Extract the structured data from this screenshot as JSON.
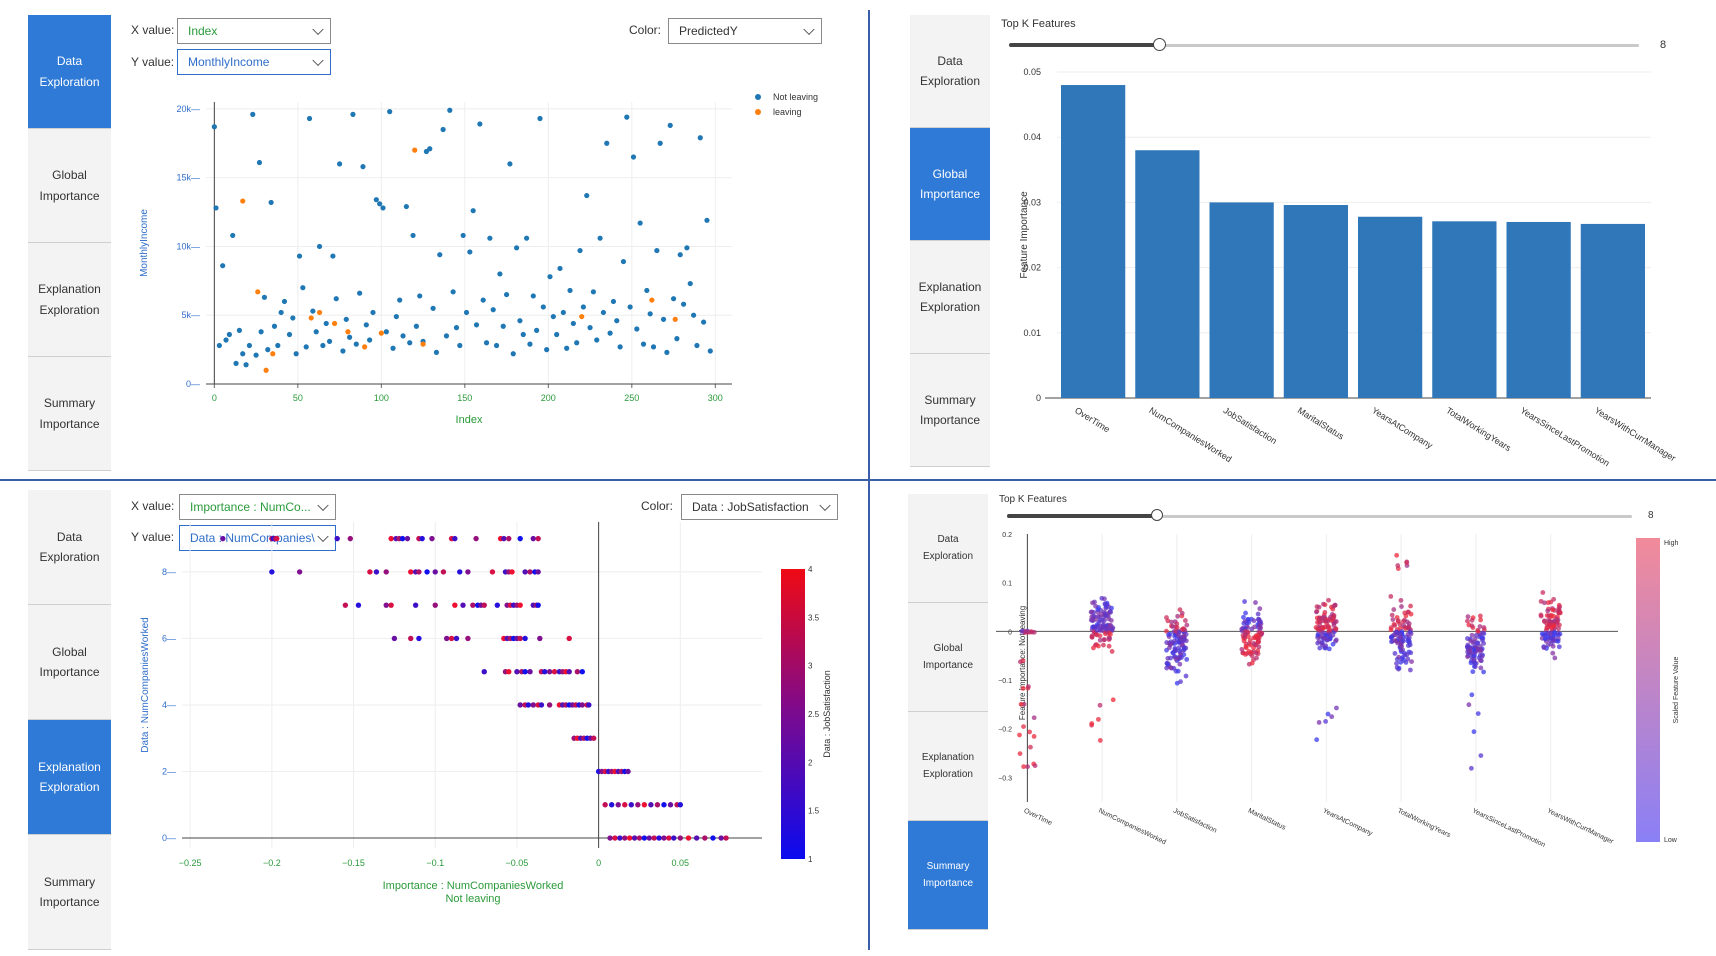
{
  "nav": {
    "data_exploration": "Data\nExploration",
    "global_importance": "Global\nImportance",
    "explanation_exploration": "Explanation\nExploration",
    "summary_importance": "Summary\nImportance"
  },
  "colors": {
    "nav_active": "#2f7ad6",
    "blue_point": "#1f77b4",
    "orange_point": "#ff7f0e",
    "bar": "#2f77b8"
  },
  "data_exploration": {
    "x_label": "X value:",
    "x_value": "Index",
    "y_label": "Y value:",
    "y_value": "MonthlyIncome",
    "color_label": "Color:",
    "color_value": "PredictedY",
    "legend": [
      "Not leaving",
      "leaving"
    ],
    "chart_data": {
      "type": "scatter",
      "xlabel": "Index",
      "ylabel": "MonthlyIncome",
      "xlim": [
        -5,
        310
      ],
      "ylim": [
        0,
        20500
      ],
      "x_ticks": [
        "0",
        "50",
        "100",
        "150",
        "200",
        "250",
        "300"
      ],
      "y_ticks": [
        "0",
        "5k",
        "10k",
        "15k",
        "20k"
      ],
      "series": [
        {
          "name": "Not leaving",
          "points": [
            [
              0,
              18700
            ],
            [
              1,
              12800
            ],
            [
              3,
              2800
            ],
            [
              5,
              8600
            ],
            [
              7,
              3200
            ],
            [
              9,
              3600
            ],
            [
              11,
              10800
            ],
            [
              13,
              1500
            ],
            [
              15,
              3900
            ],
            [
              17,
              2200
            ],
            [
              19,
              1400
            ],
            [
              21,
              2800
            ],
            [
              23,
              19600
            ],
            [
              25,
              2100
            ],
            [
              27,
              16100
            ],
            [
              28,
              3800
            ],
            [
              30,
              6300
            ],
            [
              32,
              2500
            ],
            [
              34,
              13200
            ],
            [
              36,
              4200
            ],
            [
              38,
              2800
            ],
            [
              40,
              5200
            ],
            [
              42,
              6000
            ],
            [
              45,
              3600
            ],
            [
              47,
              4800
            ],
            [
              49,
              2200
            ],
            [
              51,
              9300
            ],
            [
              53,
              7000
            ],
            [
              55,
              2700
            ],
            [
              57,
              19300
            ],
            [
              59,
              5300
            ],
            [
              61,
              3800
            ],
            [
              63,
              10000
            ],
            [
              65,
              2800
            ],
            [
              67,
              4400
            ],
            [
              69,
              3100
            ],
            [
              71,
              9300
            ],
            [
              73,
              6200
            ],
            [
              75,
              16000
            ],
            [
              77,
              2400
            ],
            [
              79,
              4700
            ],
            [
              81,
              3400
            ],
            [
              83,
              19600
            ],
            [
              85,
              2900
            ],
            [
              87,
              6600
            ],
            [
              89,
              15800
            ],
            [
              91,
              4300
            ],
            [
              93,
              3200
            ],
            [
              95,
              5200
            ],
            [
              97,
              13400
            ],
            [
              99,
              13100
            ],
            [
              101,
              12800
            ],
            [
              103,
              3800
            ],
            [
              105,
              19800
            ],
            [
              107,
              2600
            ],
            [
              109,
              4900
            ],
            [
              111,
              6100
            ],
            [
              113,
              3500
            ],
            [
              115,
              12900
            ],
            [
              117,
              3000
            ],
            [
              119,
              10800
            ],
            [
              121,
              4200
            ],
            [
              123,
              6400
            ],
            [
              125,
              3100
            ],
            [
              127,
              16900
            ],
            [
              129,
              17100
            ],
            [
              131,
              5500
            ],
            [
              133,
              2300
            ],
            [
              135,
              9400
            ],
            [
              137,
              18500
            ],
            [
              139,
              3500
            ],
            [
              141,
              19900
            ],
            [
              143,
              6700
            ],
            [
              145,
              4100
            ],
            [
              147,
              2800
            ],
            [
              149,
              10800
            ],
            [
              151,
              5200
            ],
            [
              153,
              9600
            ],
            [
              155,
              12600
            ],
            [
              157,
              4300
            ],
            [
              159,
              18900
            ],
            [
              161,
              6100
            ],
            [
              163,
              3000
            ],
            [
              165,
              10600
            ],
            [
              167,
              5400
            ],
            [
              169,
              2800
            ],
            [
              171,
              8000
            ],
            [
              173,
              4200
            ],
            [
              175,
              6500
            ],
            [
              177,
              16000
            ],
            [
              179,
              2200
            ],
            [
              181,
              9900
            ],
            [
              183,
              4600
            ],
            [
              185,
              3600
            ],
            [
              187,
              10600
            ],
            [
              189,
              2900
            ],
            [
              191,
              6400
            ],
            [
              193,
              3900
            ],
            [
              195,
              19300
            ],
            [
              197,
              5600
            ],
            [
              199,
              2500
            ],
            [
              201,
              7800
            ],
            [
              203,
              4900
            ],
            [
              205,
              3600
            ],
            [
              207,
              8400
            ],
            [
              209,
              5200
            ],
            [
              211,
              2600
            ],
            [
              213,
              6800
            ],
            [
              215,
              4400
            ],
            [
              217,
              3000
            ],
            [
              219,
              9700
            ],
            [
              221,
              5600
            ],
            [
              223,
              13700
            ],
            [
              225,
              4100
            ],
            [
              227,
              6700
            ],
            [
              229,
              3200
            ],
            [
              231,
              10600
            ],
            [
              233,
              5200
            ],
            [
              235,
              17500
            ],
            [
              237,
              3700
            ],
            [
              239,
              6000
            ],
            [
              241,
              4600
            ],
            [
              243,
              2700
            ],
            [
              245,
              8900
            ],
            [
              247,
              19400
            ],
            [
              249,
              5600
            ],
            [
              251,
              16500
            ],
            [
              253,
              4000
            ],
            [
              255,
              11700
            ],
            [
              257,
              2900
            ],
            [
              259,
              6800
            ],
            [
              261,
              5100
            ],
            [
              263,
              2700
            ],
            [
              265,
              9700
            ],
            [
              267,
              17500
            ],
            [
              269,
              4700
            ],
            [
              271,
              2300
            ],
            [
              273,
              18800
            ],
            [
              275,
              6200
            ],
            [
              277,
              3300
            ],
            [
              279,
              9400
            ],
            [
              281,
              5800
            ],
            [
              283,
              9900
            ],
            [
              285,
              7300
            ],
            [
              287,
              5000
            ],
            [
              289,
              2800
            ],
            [
              291,
              17900
            ],
            [
              293,
              4500
            ],
            [
              295,
              11900
            ],
            [
              297,
              2400
            ]
          ]
        },
        {
          "name": "leaving",
          "points": [
            [
              17,
              13300
            ],
            [
              26,
              6700
            ],
            [
              31,
              1000
            ],
            [
              35,
              2200
            ],
            [
              58,
              4800
            ],
            [
              63,
              5200
            ],
            [
              72,
              4400
            ],
            [
              80,
              3800
            ],
            [
              90,
              2700
            ],
            [
              100,
              3700
            ],
            [
              120,
              17000
            ],
            [
              125,
              2900
            ],
            [
              220,
              4900
            ],
            [
              262,
              6100
            ],
            [
              276,
              4700
            ]
          ]
        }
      ]
    }
  },
  "global_importance": {
    "slider_label": "Top K Features",
    "slider_value": "8",
    "slider_fraction": 0.24,
    "chart_data": {
      "type": "bar",
      "ylabel": "Feature Importance",
      "ylim": [
        0,
        0.05
      ],
      "y_ticks": [
        "0",
        "0.01",
        "0.02",
        "0.03",
        "0.04",
        "0.05"
      ],
      "categories": [
        "OverTime",
        "NumCompaniesWorked",
        "JobSatisfaction",
        "MaritalStatus",
        "YearsAtCompany",
        "TotalWorkingYears",
        "YearsSinceLastPromotion",
        "YearsWithCurrManager"
      ],
      "values": [
        0.048,
        0.038,
        0.03,
        0.0296,
        0.0278,
        0.0271,
        0.027,
        0.0267
      ]
    }
  },
  "explanation_exploration": {
    "x_label": "X value:",
    "x_value": "Importance : NumCo...",
    "y_label": "Y value:",
    "y_value": "Data : NumCompanies\\",
    "color_label": "Color:",
    "color_value": "Data : JobSatisfaction",
    "chart_data": {
      "type": "scatter",
      "xlabel": "Importance : NumCompaniesWorked\nNot leaving",
      "ylabel": "Data : NumCompaniesWorked",
      "colorbar_label": "Data : JobSatisfaction",
      "xlim": [
        -0.255,
        0.1
      ],
      "ylim": [
        -0.3,
        9.5
      ],
      "x_ticks": [
        "−0.25",
        "−0.2",
        "−0.15",
        "−0.1",
        "−0.05",
        "0",
        "0.05"
      ],
      "y_ticks": [
        "0",
        "2",
        "4",
        "6",
        "8"
      ],
      "colorbar_ticks": [
        "1",
        "1.5",
        "2",
        "2.5",
        "3",
        "3.5",
        "4"
      ],
      "rows": [
        {
          "y": 9,
          "points": [
            -0.23,
            -0.2,
            -0.199,
            -0.198,
            -0.197,
            -0.16,
            -0.152,
            -0.127,
            -0.124,
            -0.122,
            -0.12,
            -0.117,
            -0.11,
            -0.108,
            -0.102,
            -0.09,
            -0.088,
            -0.075,
            -0.06,
            -0.058,
            -0.055,
            -0.048,
            -0.04,
            -0.037
          ]
        },
        {
          "y": 8,
          "points": [
            -0.2,
            -0.183,
            -0.14,
            -0.136,
            -0.13,
            -0.115,
            -0.112,
            -0.11,
            -0.105,
            -0.1,
            -0.095,
            -0.085,
            -0.08,
            -0.065,
            -0.057,
            -0.055,
            -0.053,
            -0.045,
            -0.042,
            -0.039,
            -0.037
          ]
        },
        {
          "y": 7,
          "points": [
            -0.155,
            -0.147,
            -0.13,
            -0.127,
            -0.112,
            -0.1,
            -0.088,
            -0.083,
            -0.077,
            -0.074,
            -0.072,
            -0.07,
            -0.062,
            -0.056,
            -0.054,
            -0.052,
            -0.05,
            -0.048,
            -0.04,
            -0.038,
            -0.037
          ]
        },
        {
          "y": 6,
          "points": [
            -0.125,
            -0.115,
            -0.11,
            -0.093,
            -0.09,
            -0.087,
            -0.08,
            -0.058,
            -0.056,
            -0.054,
            -0.052,
            -0.05,
            -0.048,
            -0.045,
            -0.036,
            -0.018
          ]
        },
        {
          "y": 5,
          "points": [
            -0.07,
            -0.057,
            -0.055,
            -0.05,
            -0.047,
            -0.045,
            -0.042,
            -0.035,
            -0.033,
            -0.03,
            -0.027,
            -0.024,
            -0.022,
            -0.02,
            -0.018,
            -0.013,
            -0.01
          ]
        },
        {
          "y": 4,
          "points": [
            -0.048,
            -0.045,
            -0.043,
            -0.04,
            -0.037,
            -0.035,
            -0.03,
            -0.024,
            -0.022,
            -0.02,
            -0.018,
            -0.016,
            -0.014,
            -0.012,
            -0.01,
            -0.007,
            -0.006
          ]
        },
        {
          "y": 3,
          "points": [
            -0.015,
            -0.013,
            -0.011,
            -0.009,
            -0.007,
            -0.005,
            -0.003
          ]
        },
        {
          "y": 2,
          "points": [
            0,
            0.002,
            0.004,
            0.006,
            0.008,
            0.01,
            0.012,
            0.014,
            0.016,
            0.018
          ]
        },
        {
          "y": 1,
          "points": [
            0.004,
            0.008,
            0.012,
            0.016,
            0.02,
            0.024,
            0.028,
            0.032,
            0.036,
            0.04,
            0.044,
            0.048,
            0.05
          ]
        },
        {
          "y": 0,
          "points": [
            0.007,
            0.01,
            0.013,
            0.016,
            0.019,
            0.022,
            0.025,
            0.028,
            0.031,
            0.034,
            0.037,
            0.04,
            0.043,
            0.046,
            0.05,
            0.055,
            0.06,
            0.065,
            0.07,
            0.075,
            0.078
          ]
        }
      ]
    }
  },
  "summary_importance": {
    "slider_label": "Top K Features",
    "slider_value": "8",
    "slider_fraction": 0.24,
    "chart_data": {
      "type": "scatter",
      "ylabel": "Feature Importance: Not leaving",
      "colorbar_label": "Scaled Feature Value",
      "colorbar_high": "High",
      "colorbar_low": "Low",
      "ylim": [
        -0.33,
        0.2
      ],
      "y_ticks": [
        "0.2",
        "0.1",
        "0",
        "−0.1",
        "−0.2",
        "−0.3"
      ],
      "categories": [
        "OverTime",
        "NumCompaniesWorked",
        "JobSatisfaction",
        "MaritalStatus",
        "YearsAtCompany",
        "TotalWorkingYears",
        "YearsSinceLastPromotion",
        "YearsWithCurrManager"
      ]
    }
  }
}
